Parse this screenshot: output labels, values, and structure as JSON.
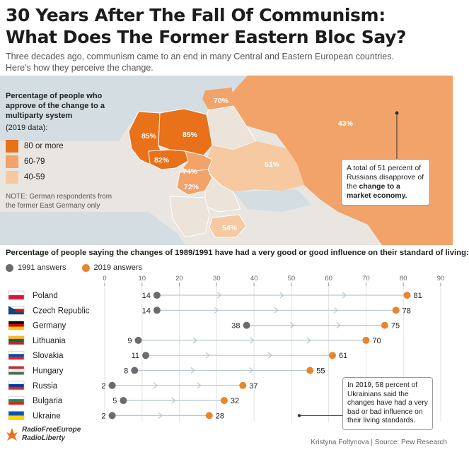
{
  "header": {
    "title_line1": "30 Years After The Fall Of Communism:",
    "title_line2": "What Does The Former Eastern Bloc Say?",
    "subtitle_line1": "Three decades ago, communism came to an end in many Central and Eastern European countries.",
    "subtitle_line2": "Here's how they perceive the change."
  },
  "map": {
    "legend_title": "Percentage of people who approve of the change to a multiparty system",
    "legend_sub": "(2019 data):",
    "legend": [
      {
        "label": "80 or more",
        "color": "#e8711a"
      },
      {
        "label": "60-79",
        "color": "#f1a36a"
      },
      {
        "label": "40-59",
        "color": "#f6c9a1"
      }
    ],
    "note": "NOTE: German respondents from the former East Germany only",
    "values": {
      "lithuania": "70%",
      "russia": "43%",
      "germany": "85%",
      "poland": "85%",
      "czech": "82%",
      "ukraine": "51%",
      "slovakia": "74%",
      "hungary": "72%",
      "bulgaria": "54%"
    },
    "callout_pre": "A total of 51 percent of Russians disapprove of the",
    "callout_bold": "change to a market economy."
  },
  "chart_data": {
    "type": "dot-plot",
    "title": "Percentage of people saying the changes of 1989/1991 have had a very good or good influence on their standard of living:",
    "xlim": [
      0,
      90
    ],
    "ticks": [
      0,
      10,
      20,
      30,
      40,
      50,
      60,
      70,
      80,
      90
    ],
    "series": [
      {
        "name": "1991 answers",
        "color": "#6b6b6b"
      },
      {
        "name": "2019 answers",
        "color": "#e8852f"
      }
    ],
    "rows": [
      {
        "country": "Poland",
        "v1991": 14,
        "v2019": 81
      },
      {
        "country": "Czech Republic",
        "v1991": 14,
        "v2019": 78
      },
      {
        "country": "Germany",
        "v1991": 38,
        "v2019": 75
      },
      {
        "country": "Lithuania",
        "v1991": 9,
        "v2019": 70
      },
      {
        "country": "Slovakia",
        "v1991": 11,
        "v2019": 61
      },
      {
        "country": "Hungary",
        "v1991": 8,
        "v2019": 55
      },
      {
        "country": "Russia",
        "v1991": 2,
        "v2019": 37
      },
      {
        "country": "Bulgaria",
        "v1991": 5,
        "v2019": 32
      },
      {
        "country": "Ukraine",
        "v1991": 2,
        "v2019": 28
      }
    ]
  },
  "callout2": "In 2019, 58 percent of Ukrainians said the changes have had a very bad or bad influence on their living standards.",
  "footer": {
    "logo_line1": "RadioFreeEurope",
    "logo_line2": "RadioLiberty",
    "credit": "Kristyna Foltynova | Source: Pew Research"
  }
}
